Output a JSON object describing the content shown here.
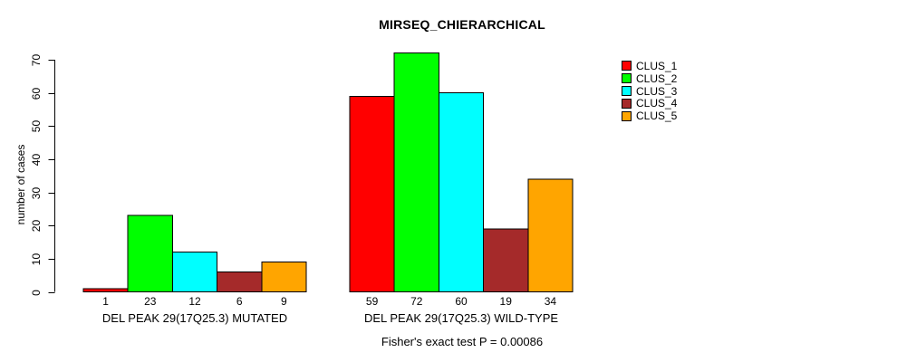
{
  "chart_data": {
    "type": "bar",
    "title": "MIRSEQ_CHIERARCHICAL",
    "subtitle": "Fisher's exact test P = 0.00086",
    "ylabel": "number of cases",
    "xlabel": "",
    "ylim": [
      0,
      72
    ],
    "yticks": [
      0,
      10,
      20,
      30,
      40,
      50,
      60,
      70
    ],
    "grid": false,
    "legend_position": "top-right",
    "show_value_labels": true,
    "categories": [
      "DEL PEAK 29(17Q25.3) MUTATED",
      "DEL PEAK 29(17Q25.3) WILD-TYPE"
    ],
    "series": [
      {
        "name": "CLUS_1",
        "color": "#FF0000",
        "values": [
          1,
          59
        ]
      },
      {
        "name": "CLUS_2",
        "color": "#00FF00",
        "values": [
          23,
          72
        ]
      },
      {
        "name": "CLUS_3",
        "color": "#00FFFF",
        "values": [
          12,
          60
        ]
      },
      {
        "name": "CLUS_4",
        "color": "#A52A2A",
        "values": [
          6,
          19
        ]
      },
      {
        "name": "CLUS_5",
        "color": "#FFA500",
        "values": [
          9,
          34
        ]
      }
    ]
  }
}
